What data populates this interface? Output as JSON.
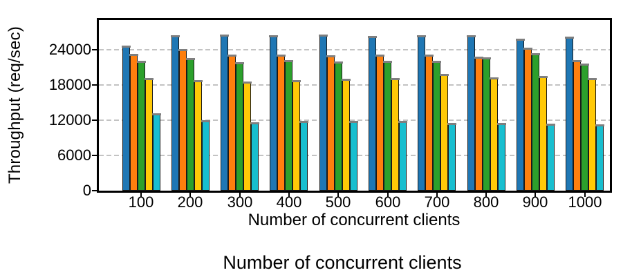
{
  "figure": {
    "caption": "Number of concurrent clients"
  },
  "chart_data": {
    "type": "bar",
    "title": "",
    "xlabel": "Number of concurrent clients",
    "ylabel": "Throughput (req/sec)",
    "categories": [
      "100",
      "200",
      "300",
      "400",
      "500",
      "600",
      "700",
      "800",
      "900",
      "1000"
    ],
    "series": [
      {
        "name": "blue",
        "color": "#1f77b4",
        "values": [
          24600,
          26350,
          26500,
          26400,
          26500,
          26250,
          26300,
          26350,
          25750,
          26150
        ]
      },
      {
        "name": "orange",
        "color": "#ff7f0e",
        "values": [
          23200,
          24000,
          23100,
          23000,
          22900,
          23100,
          23050,
          22700,
          24200,
          22100
        ]
      },
      {
        "name": "green",
        "color": "#2ca02c",
        "values": [
          21950,
          22500,
          21800,
          22100,
          21900,
          22000,
          22000,
          22550,
          23300,
          21500
        ]
      },
      {
        "name": "yellow",
        "color": "#ffc907",
        "values": [
          19000,
          18650,
          18500,
          18750,
          18900,
          19000,
          19800,
          19200,
          19450,
          19050
        ]
      },
      {
        "name": "cyan",
        "color": "#18becf",
        "values": [
          13000,
          11850,
          11500,
          11750,
          11750,
          11750,
          11450,
          11400,
          11250,
          11150
        ]
      }
    ],
    "y_ticks": [
      0,
      6000,
      12000,
      18000,
      24000
    ],
    "ylim": [
      0,
      29300
    ],
    "grid": "dashed-horizontal-gray",
    "legend": "none",
    "error_caps": true,
    "error_cap_color": "#7f7f7f",
    "bar_edge_color": "#1a1a1a",
    "gridline_color": "#c3c3c3",
    "axis_color": "#000000",
    "background_color": "#ffffff"
  }
}
